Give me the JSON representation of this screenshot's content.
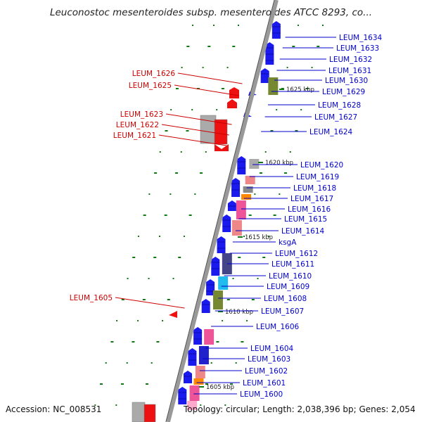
{
  "title": "Leuconostoc mesenteroides subsp. mesenteroides ATCC 8293, co...",
  "accession": "Accession: NC_008531",
  "topology": "Topology: circular; Length: 2,038,396 bp; Genes: 2,054",
  "colors": {
    "forward_label": "#0000cc",
    "reverse_label": "#cc0000",
    "backbone": "#999999",
    "cds": "#1a1aee",
    "reverse_cds": "#ee1111",
    "gc_marker": "#117711",
    "pink": "#ee5599",
    "salmon": "#ee8888",
    "gray": "#aaaaaa",
    "olive": "#778833",
    "orange": "#ff8800",
    "cyan": "#22bbee",
    "indigo": "#444488"
  },
  "kbp_marks": [
    "1625 kbp",
    "1620 kbp",
    "1615 kbp",
    "1610 kbp",
    "1605 kbp"
  ],
  "right_labels": [
    "LEUM_1634",
    "LEUM_1633",
    "LEUM_1632",
    "LEUM_1631",
    "LEUM_1630",
    "LEUM_1629",
    "LEUM_1628",
    "LEUM_1627",
    "LEUM_1624",
    "LEUM_1620",
    "LEUM_1619",
    "LEUM_1618",
    "LEUM_1617",
    "LEUM_1616",
    "LEUM_1615",
    "LEUM_1614",
    "ksgA",
    "LEUM_1612",
    "LEUM_1611",
    "LEUM_1610",
    "LEUM_1609",
    "LEUM_1608",
    "LEUM_1607",
    "LEUM_1606",
    "LEUM_1604",
    "LEUM_1603",
    "LEUM_1602",
    "LEUM_1601",
    "LEUM_1600"
  ],
  "left_labels": [
    "LEUM_1626",
    "LEUM_1625",
    "LEUM_1623",
    "LEUM_1622",
    "LEUM_1621",
    "LEUM_1605"
  ]
}
